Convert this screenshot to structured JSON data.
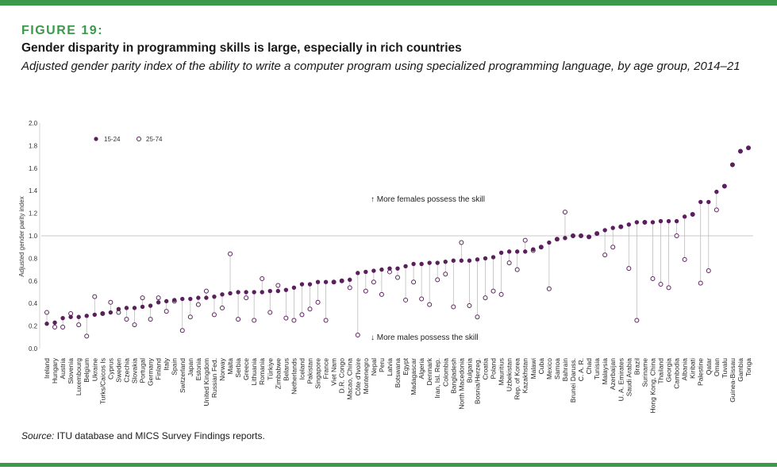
{
  "header": {
    "figure_label": "FIGURE 19:",
    "title": "Gender disparity in programming skills is large, especially in rich countries",
    "subtitle": "Adjusted gender parity index of the ability to write a computer program using specialized programming language, by age group, 2014–21"
  },
  "source": {
    "label": "Source:",
    "text": " ITU database and MICS Survey Findings reports."
  },
  "colors": {
    "accent": "#3a9a4a",
    "series_15_24": "#5c1f5e",
    "series_25_74": "#5c1f5e",
    "reference_line": "#c8c8c8",
    "connector": "#bdbdbd"
  },
  "chart_data": {
    "type": "scatter",
    "ylabel": "Adjusted gender parity index",
    "ylim": [
      0,
      2
    ],
    "yticks": [
      "0.0",
      "0.2",
      "0.4",
      "0.6",
      "0.8",
      "1.0",
      "1.2",
      "1.4",
      "1.6",
      "1.8",
      "2.0"
    ],
    "reference_line": 1.0,
    "legend": {
      "placement": "top-left",
      "entries": [
        {
          "name": "15-24",
          "marker": "filled"
        },
        {
          "name": "25-74",
          "marker": "hollow"
        }
      ]
    },
    "annotations": {
      "above": "↑ More females possess the skill",
      "below": "↓ More males possess the skill"
    },
    "categories": [
      "Ireland",
      "Hungary",
      "Austria",
      "Slovenia",
      "Luxembourg",
      "Belgium",
      "Ukraine",
      "Turks/Caicos Is",
      "Cyprus",
      "Sweden",
      "Czechia",
      "Slovakia",
      "Portugal",
      "Germany",
      "Finland",
      "Italy",
      "Spain",
      "Switzerland",
      "Japan",
      "Estonia",
      "United Kingdom",
      "Russian Fed.",
      "Norway",
      "Malta",
      "Serbia",
      "Greece",
      "Lithuania",
      "Romania",
      "Türkiye",
      "Zimbabwe",
      "Belarus",
      "Netherlands",
      "Iceland",
      "Pakistan",
      "Singapore",
      "France",
      "Viet Nam",
      "D.R. Congo",
      "Macao, China",
      "Côte d'Ivoire",
      "Montenegro",
      "Nepal",
      "Peru",
      "Latvia",
      "Botswana",
      "Egypt",
      "Madagascar",
      "Algeria",
      "Denmark",
      "Iran, Isl. Rep.",
      "Colombia",
      "Bangladesh",
      "North Macedonia",
      "Bulgaria",
      "Bosnia/Herzeg.",
      "Croatia",
      "Poland",
      "Mauritius",
      "Uzbekistan",
      "Rep. of Korea",
      "Kazakhstan",
      "Malawi",
      "Cuba",
      "Mexico",
      "Samoa",
      "Bahrain",
      "Brunei Daruss.",
      "C. A. R.",
      "Chad",
      "Tunisia",
      "Malaysia",
      "Azerbaijan",
      "U. A. Emirates",
      "Saudi Arabia",
      "Brazil",
      "Suriname",
      "Hong Kong, China",
      "Thailand",
      "Georgia",
      "Cambodia",
      "Albania",
      "Kiribati",
      "Palestine",
      "Qatar",
      "Oman",
      "Tuvalu",
      "Guinea-Bissau",
      "Gambia",
      "Tonga"
    ],
    "series": [
      {
        "name": "15-24",
        "marker": "filled",
        "values": [
          0.22,
          0.23,
          0.27,
          0.28,
          0.28,
          0.29,
          0.3,
          0.31,
          0.32,
          0.35,
          0.36,
          0.36,
          0.37,
          0.38,
          0.41,
          0.42,
          0.43,
          0.44,
          0.44,
          0.45,
          0.45,
          0.46,
          0.48,
          0.49,
          0.5,
          0.5,
          0.5,
          0.5,
          0.51,
          0.51,
          0.52,
          0.54,
          0.57,
          0.57,
          0.59,
          0.59,
          0.59,
          0.6,
          0.61,
          0.67,
          0.68,
          0.69,
          0.7,
          0.71,
          0.71,
          0.73,
          0.75,
          0.75,
          0.76,
          0.76,
          0.77,
          0.78,
          0.78,
          0.78,
          0.79,
          0.8,
          0.81,
          0.85,
          0.86,
          0.86,
          0.86,
          0.88,
          0.9,
          0.94,
          0.97,
          0.98,
          1.0,
          1.0,
          0.99,
          1.02,
          1.05,
          1.07,
          1.08,
          1.1,
          1.12,
          1.12,
          1.12,
          1.13,
          1.13,
          1.13,
          1.17,
          1.19,
          1.3,
          1.3,
          1.39,
          1.44,
          1.63,
          1.75,
          1.78
        ]
      },
      {
        "name": "25-74",
        "marker": "hollow",
        "values": [
          0.32,
          0.19,
          0.19,
          0.31,
          0.21,
          0.11,
          0.46,
          0.31,
          0.41,
          0.32,
          0.26,
          0.21,
          0.45,
          0.26,
          0.45,
          0.33,
          0.42,
          0.16,
          0.28,
          0.39,
          0.51,
          0.3,
          0.36,
          0.84,
          0.26,
          0.45,
          0.25,
          0.62,
          0.32,
          0.56,
          0.27,
          0.25,
          0.3,
          0.35,
          0.41,
          0.25,
          0.59,
          0.6,
          0.54,
          0.12,
          0.51,
          0.59,
          0.48,
          0.68,
          0.63,
          0.43,
          0.59,
          0.44,
          0.39,
          0.61,
          0.66,
          0.37,
          0.94,
          0.38,
          0.28,
          0.45,
          0.51,
          0.48,
          0.76,
          0.7,
          0.96,
          0.87,
          0.9,
          0.53,
          0.97,
          1.21,
          1.0,
          1.0,
          0.99,
          1.02,
          0.83,
          0.9,
          1.08,
          0.71,
          0.25,
          1.12,
          0.62,
          0.57,
          0.54,
          1.0,
          0.79,
          1.19,
          0.58,
          0.69,
          1.23,
          1.44,
          1.63,
          1.75,
          1.78
        ]
      }
    ]
  }
}
